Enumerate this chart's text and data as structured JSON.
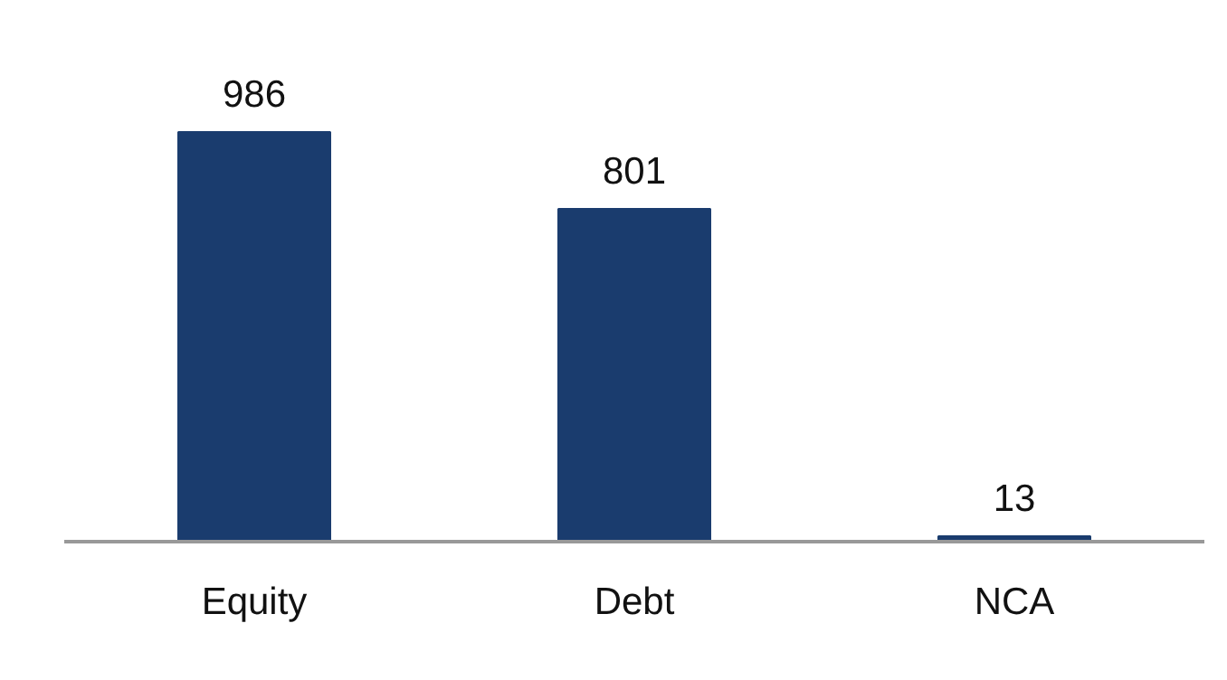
{
  "chart_data": {
    "type": "bar",
    "categories": [
      "Equity",
      "Debt",
      "NCA"
    ],
    "values": [
      986,
      801,
      13
    ],
    "color": "#1a3c6e",
    "data_labels": true,
    "tick_labels": "x",
    "grid": false
  }
}
